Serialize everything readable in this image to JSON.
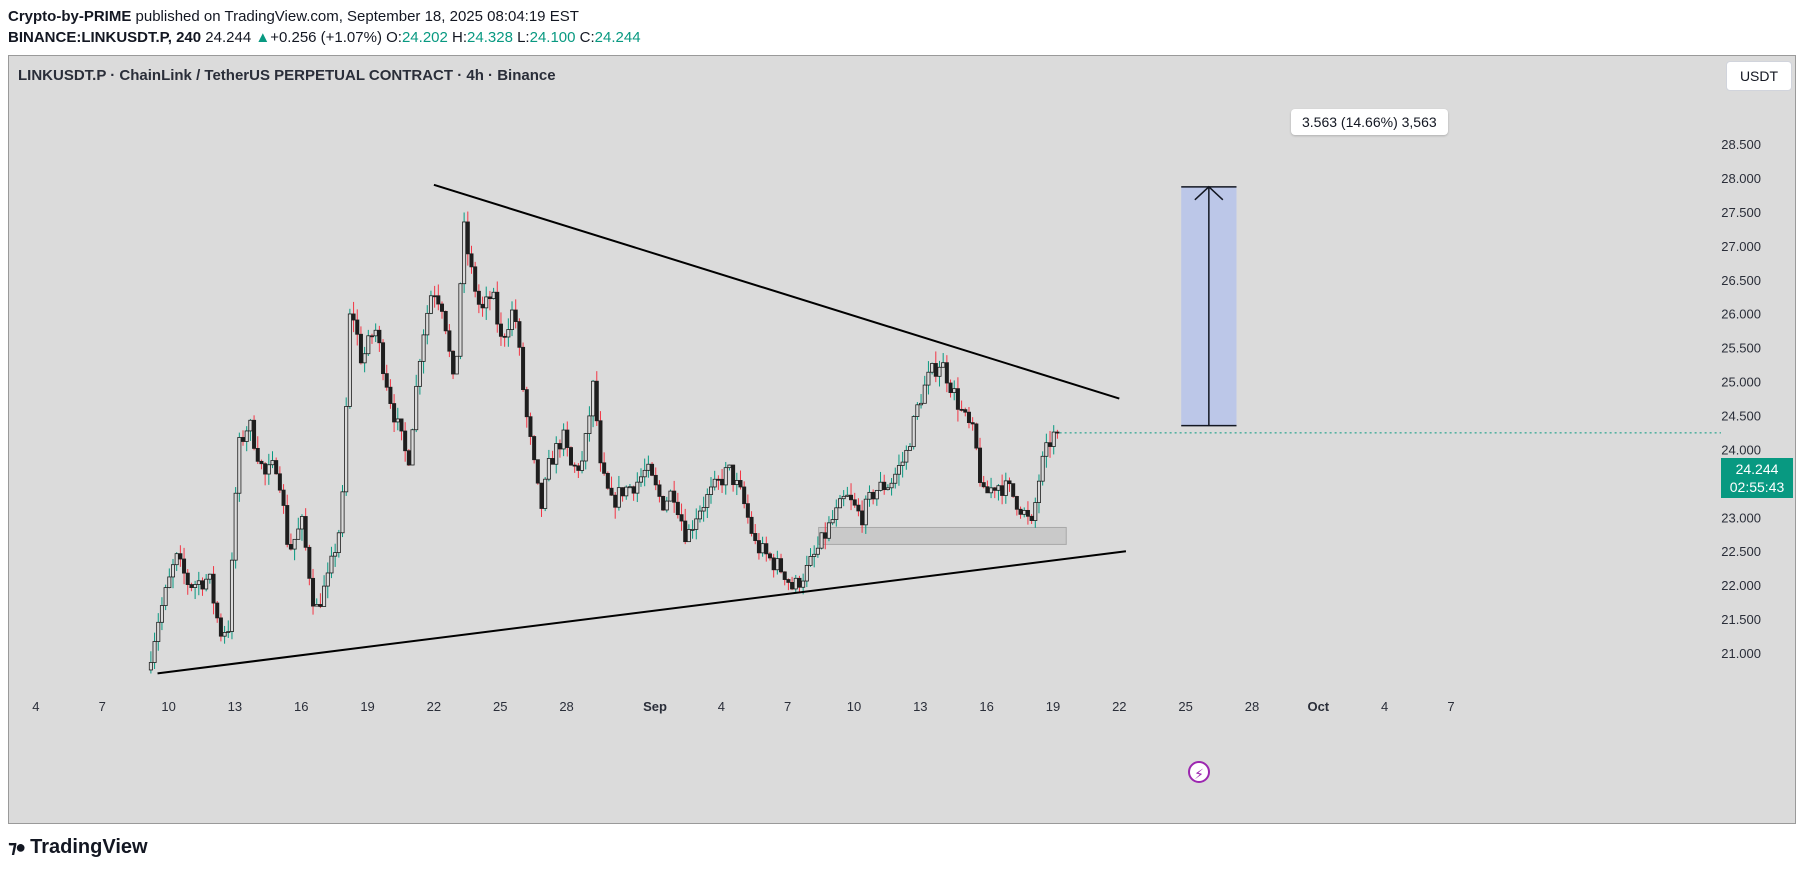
{
  "header": {
    "author": "Crypto-by-PRIME",
    "published": "published on TradingView.com, September 18, 2025 08:04:19 EST",
    "symbol": "BINANCE:LINKUSDT.P, 240",
    "last": "24.244",
    "change_arrow": "▲",
    "change": "+0.256 (+1.07%)",
    "o_label": "O:",
    "o": "24.202",
    "h_label": "H:",
    "h": "24.328",
    "l_label": "L:",
    "l": "24.100",
    "c_label": "C:",
    "c": "24.244"
  },
  "legend": {
    "title": "LINKUSDT.P · ChainLink / TetherUS PERPETUAL CONTRACT · 4h · Binance"
  },
  "currency_button": "USDT",
  "measure_label": "3.563 (14.66%) 3,563",
  "price_tag": {
    "price": "24.244",
    "countdown": "02:55:43"
  },
  "footer": {
    "brand": "TradingView"
  },
  "icons": {
    "flash": "flash-icon",
    "logo": "tradingview-logo-icon",
    "arrow": "arrow-up-icon"
  },
  "colors": {
    "up": "#089981",
    "down": "#f23645",
    "candle_body": "#1e1e1e",
    "background": "#dbdbdb",
    "measure_fill": "#bcc7e8",
    "support_zone": "#c9c9c9"
  },
  "chart_data": {
    "type": "candlestick",
    "title": "LINKUSDT.P · ChainLink / TetherUS PERPETUAL CONTRACT · 4h · Binance",
    "y_ticks": [
      "28.500",
      "28.000",
      "27.500",
      "27.000",
      "26.500",
      "26.000",
      "25.500",
      "25.000",
      "24.500",
      "24.000",
      "23.500",
      "23.000",
      "22.500",
      "22.000",
      "21.500",
      "21.000"
    ],
    "ylim": [
      20.5,
      28.5
    ],
    "x_ticks": [
      "4",
      "7",
      "10",
      "13",
      "16",
      "19",
      "22",
      "25",
      "28",
      "Sep",
      "4",
      "7",
      "10",
      "13",
      "16",
      "19",
      "22",
      "25",
      "28",
      "Oct",
      "4",
      "7"
    ],
    "x_tick_days": [
      -28,
      -25,
      -22,
      -19,
      -16,
      -13,
      -10,
      -7,
      -4,
      0,
      3,
      6,
      9,
      12,
      15,
      18,
      21,
      24,
      27,
      30,
      33,
      36
    ],
    "bold_ticks": [
      "Sep",
      "Oct"
    ],
    "last_price": 24.244,
    "series_path": [
      [
        -22.8,
        20.75
      ],
      [
        -22.3,
        21.5
      ],
      [
        -21.5,
        22.4
      ],
      [
        -20.9,
        22.0
      ],
      [
        -20.0,
        22.1
      ],
      [
        -19.5,
        21.3
      ],
      [
        -19.1,
        21.4
      ],
      [
        -18.7,
        24.0
      ],
      [
        -18.2,
        24.4
      ],
      [
        -17.5,
        23.6
      ],
      [
        -16.9,
        23.8
      ],
      [
        -16.4,
        22.5
      ],
      [
        -15.8,
        22.9
      ],
      [
        -15.2,
        21.6
      ],
      [
        -14.6,
        22.1
      ],
      [
        -14.0,
        23.0
      ],
      [
        -13.6,
        26.2
      ],
      [
        -13.1,
        25.3
      ],
      [
        -12.5,
        25.8
      ],
      [
        -11.7,
        24.6
      ],
      [
        -11.0,
        23.8
      ],
      [
        -10.4,
        25.6
      ],
      [
        -9.9,
        26.4
      ],
      [
        -9.4,
        26.1
      ],
      [
        -8.9,
        24.8
      ],
      [
        -8.5,
        27.3
      ],
      [
        -8.2,
        26.7
      ],
      [
        -7.7,
        26.0
      ],
      [
        -7.2,
        26.3
      ],
      [
        -6.8,
        25.6
      ],
      [
        -6.2,
        26.1
      ],
      [
        -5.7,
        24.6
      ],
      [
        -5.0,
        23.1
      ],
      [
        -4.6,
        23.8
      ],
      [
        -4.0,
        24.2
      ],
      [
        -3.6,
        23.7
      ],
      [
        -3.1,
        23.8
      ],
      [
        -2.6,
        25.0
      ],
      [
        -2.3,
        23.7
      ],
      [
        -1.8,
        23.2
      ],
      [
        -1.3,
        23.4
      ],
      [
        -0.7,
        23.5
      ],
      [
        -0.2,
        23.7
      ],
      [
        0.5,
        23.2
      ],
      [
        1.0,
        23.4
      ],
      [
        1.6,
        22.7
      ],
      [
        2.1,
        23.1
      ],
      [
        2.8,
        23.4
      ],
      [
        3.5,
        23.7
      ],
      [
        4.1,
        23.3
      ],
      [
        4.7,
        22.6
      ],
      [
        5.3,
        22.4
      ],
      [
        6.0,
        22.2
      ],
      [
        6.4,
        21.95
      ],
      [
        7.0,
        22.2
      ],
      [
        7.5,
        22.5
      ],
      [
        8.1,
        22.9
      ],
      [
        8.8,
        23.3
      ],
      [
        9.5,
        23.0
      ],
      [
        10.1,
        23.4
      ],
      [
        10.8,
        23.5
      ],
      [
        11.5,
        23.9
      ],
      [
        12.1,
        24.7
      ],
      [
        12.6,
        25.1
      ],
      [
        13.1,
        25.3
      ],
      [
        13.6,
        24.9
      ],
      [
        14.1,
        24.5
      ],
      [
        14.6,
        24.2
      ],
      [
        15.0,
        23.3
      ],
      [
        15.6,
        23.5
      ],
      [
        16.2,
        23.4
      ],
      [
        16.8,
        23.1
      ],
      [
        17.2,
        22.85
      ],
      [
        17.6,
        23.7
      ],
      [
        18.0,
        24.1
      ],
      [
        18.3,
        24.244
      ]
    ],
    "annotations": {
      "resistance_line": {
        "from": [
          -10.0,
          27.9
        ],
        "to": [
          21.0,
          24.75
        ]
      },
      "support_line": {
        "from": [
          -22.5,
          20.7
        ],
        "to": [
          21.3,
          22.5
        ]
      },
      "support_zone": {
        "x": [
          7.4,
          18.6
        ],
        "y": [
          22.6,
          22.85
        ]
      },
      "price_range": {
        "x": [
          23.8,
          26.3
        ],
        "y": [
          24.35,
          27.87
        ],
        "label": "3.563 (14.66%) 3,563"
      }
    }
  }
}
